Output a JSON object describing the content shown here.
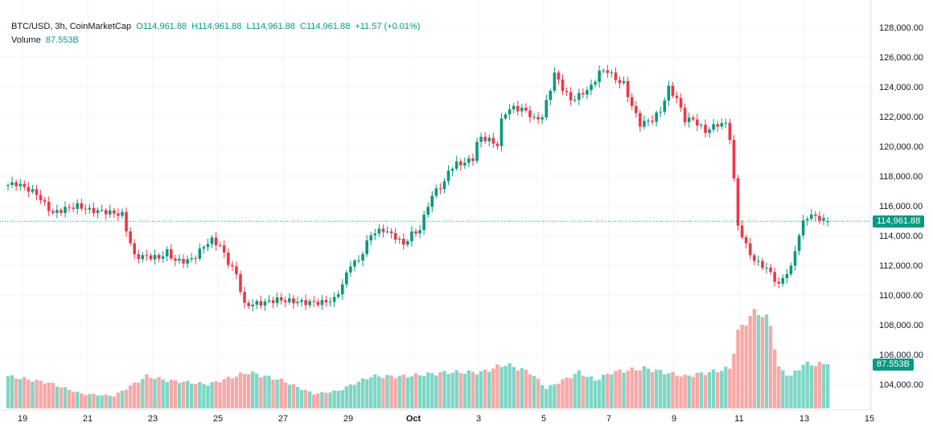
{
  "legend": {
    "symbol": "BTC/USD, 3h, CoinMarketCap",
    "open": "O114,961.88",
    "high": "H114,961.88",
    "low": "L114,961.88",
    "close": "C114,961.88",
    "change": "+11.57 (+0.01%)",
    "volume_label": "Volume",
    "volume_value": "87.553B"
  },
  "price_badge": "114,961.88",
  "volume_badge": "87.553B",
  "colors": {
    "up": "#089981",
    "down": "#f23645",
    "vol_up": "#7fd6c6",
    "vol_down": "#f7a9a7"
  },
  "chart_data": {
    "type": "candlestick",
    "interval": "3h",
    "y_ticks": [
      "128,000.00",
      "126,000.00",
      "124,000.00",
      "122,000.00",
      "120,000.00",
      "118,000.00",
      "116,000.00",
      "114,000.00",
      "112,000.00",
      "110,000.00",
      "108,000.00",
      "106,000.00",
      "104,000.00"
    ],
    "ylim": [
      103000,
      128500
    ],
    "x_ticks": [
      "19",
      "21",
      "23",
      "25",
      "27",
      "29",
      "Oct",
      "3",
      "5",
      "7",
      "9",
      "11",
      "13",
      "15"
    ],
    "last_price": 114961.88,
    "close_path": [
      [
        0,
        117.4
      ],
      [
        2,
        117.5
      ],
      [
        5,
        117.1
      ],
      [
        7,
        116.8
      ],
      [
        9,
        116.1
      ],
      [
        11,
        115.5
      ],
      [
        14,
        115.8
      ],
      [
        17,
        116.0
      ],
      [
        20,
        115.7
      ],
      [
        24,
        115.6
      ],
      [
        28,
        115.4
      ],
      [
        29,
        114.4
      ],
      [
        31,
        112.6
      ],
      [
        34,
        112.6
      ],
      [
        37,
        112.5
      ],
      [
        39,
        112.9
      ],
      [
        41,
        112.3
      ],
      [
        44,
        112.3
      ],
      [
        46,
        112.6
      ],
      [
        48,
        113.3
      ],
      [
        50,
        113.7
      ],
      [
        52,
        113.3
      ],
      [
        54,
        112.2
      ],
      [
        56,
        111.4
      ],
      [
        58,
        109.3
      ],
      [
        60,
        109.4
      ],
      [
        63,
        109.5
      ],
      [
        66,
        109.7
      ],
      [
        69,
        109.6
      ],
      [
        73,
        109.5
      ],
      [
        77,
        109.5
      ],
      [
        80,
        109.7
      ],
      [
        82,
        110.7
      ],
      [
        84,
        112.1
      ],
      [
        86,
        112.3
      ],
      [
        89,
        114.1
      ],
      [
        92,
        114.4
      ],
      [
        95,
        113.9
      ],
      [
        97,
        113.4
      ],
      [
        99,
        114.1
      ],
      [
        101,
        114.4
      ],
      [
        103,
        116.1
      ],
      [
        105,
        117.1
      ],
      [
        107,
        117.5
      ],
      [
        108,
        118.4
      ],
      [
        110,
        118.8
      ],
      [
        112,
        118.9
      ],
      [
        114,
        119.2
      ],
      [
        115,
        120.2
      ],
      [
        116,
        120.6
      ],
      [
        118,
        120.4
      ],
      [
        120,
        120.1
      ],
      [
        121,
        121.7
      ],
      [
        122,
        122.3
      ],
      [
        124,
        122.6
      ],
      [
        127,
        122.4
      ],
      [
        129,
        121.8
      ],
      [
        131,
        122.0
      ],
      [
        133,
        123.9
      ],
      [
        134,
        124.9
      ],
      [
        136,
        123.9
      ],
      [
        138,
        123.1
      ],
      [
        140,
        123.4
      ],
      [
        143,
        124.0
      ],
      [
        145,
        125.0
      ],
      [
        147,
        125.1
      ],
      [
        149,
        124.5
      ],
      [
        151,
        124.2
      ],
      [
        153,
        122.7
      ],
      [
        155,
        121.5
      ],
      [
        158,
        121.8
      ],
      [
        160,
        122.4
      ],
      [
        162,
        123.9
      ],
      [
        164,
        123.2
      ],
      [
        166,
        121.8
      ],
      [
        168,
        121.8
      ],
      [
        171,
        121.0
      ],
      [
        174,
        121.5
      ],
      [
        176,
        121.5
      ],
      [
        177,
        120.6
      ],
      [
        178,
        117.7
      ],
      [
        179,
        114.7
      ],
      [
        181,
        113.3
      ],
      [
        183,
        112.3
      ],
      [
        185,
        112.0
      ],
      [
        187,
        111.5
      ],
      [
        189,
        110.6
      ],
      [
        190,
        111.2
      ],
      [
        192,
        111.8
      ],
      [
        193,
        113.1
      ],
      [
        195,
        114.9
      ],
      [
        196,
        115.3
      ],
      [
        198,
        115.3
      ],
      [
        200,
        115.0
      ],
      [
        201,
        114.96
      ]
    ],
    "volume_path_B": [
      [
        0,
        64
      ],
      [
        10,
        51
      ],
      [
        18,
        29
      ],
      [
        26,
        25
      ],
      [
        34,
        64
      ],
      [
        39,
        56
      ],
      [
        49,
        48
      ],
      [
        59,
        72
      ],
      [
        67,
        56
      ],
      [
        75,
        29
      ],
      [
        81,
        35
      ],
      [
        89,
        64
      ],
      [
        97,
        64
      ],
      [
        108,
        72
      ],
      [
        116,
        72
      ],
      [
        122,
        88
      ],
      [
        128,
        72
      ],
      [
        132,
        40
      ],
      [
        140,
        72
      ],
      [
        144,
        56
      ],
      [
        148,
        72
      ],
      [
        156,
        80
      ],
      [
        166,
        64
      ],
      [
        172,
        72
      ],
      [
        177,
        80
      ],
      [
        179,
        150
      ],
      [
        181,
        175
      ],
      [
        184,
        195
      ],
      [
        187,
        167
      ],
      [
        189,
        80
      ],
      [
        192,
        64
      ],
      [
        195,
        88
      ],
      [
        201,
        88
      ]
    ]
  }
}
